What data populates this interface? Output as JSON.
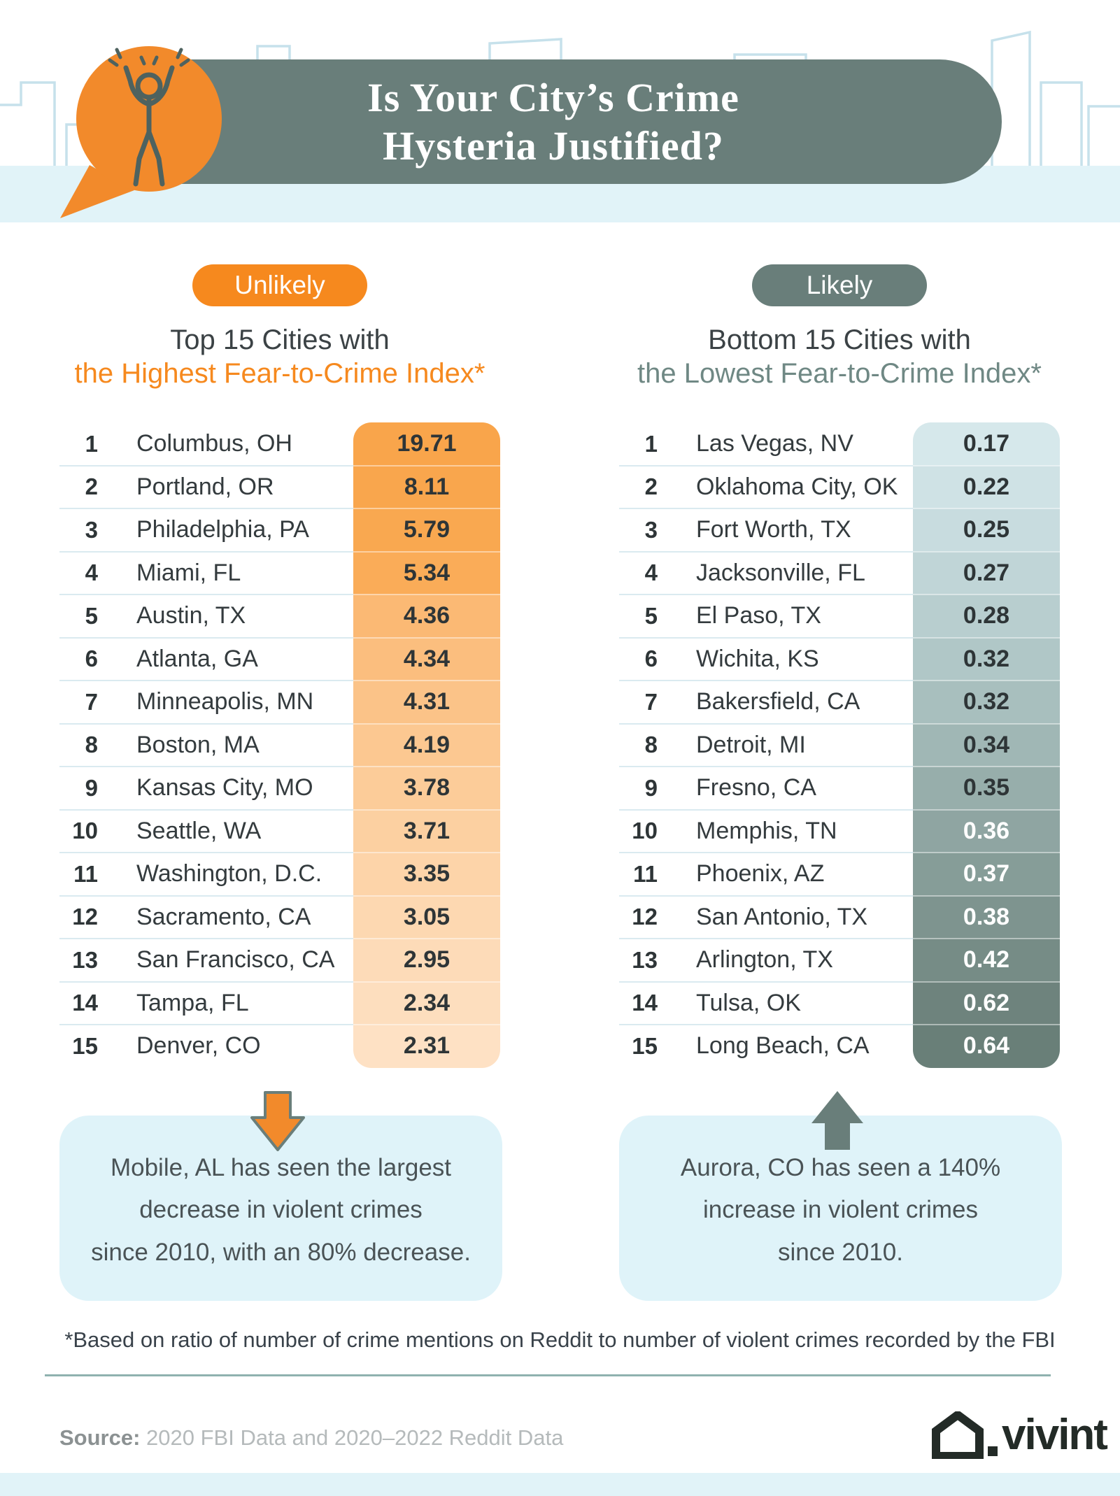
{
  "header": {
    "title_line1": "Is Your City’s Crime",
    "title_line2": "Hysteria Justified?"
  },
  "left": {
    "badge": "Unlikely",
    "heading_line1": "Top 15 Cities with",
    "heading_line2": "the Highest Fear-to-Crime Index*",
    "accent": "#F6891E",
    "callout_lines": [
      "Mobile, AL has seen the largest",
      "decrease in violent crimes",
      "since 2010, with an 80% decrease."
    ]
  },
  "right": {
    "badge": "Likely",
    "heading_line1": "Bottom 15 Cities with",
    "heading_line2": "the Lowest Fear-to-Crime Index*",
    "accent": "#6F8884",
    "callout_lines": [
      "Aurora, CO has seen a 140%",
      "increase in violent crimes",
      "since 2010."
    ]
  },
  "chart_data": [
    {
      "type": "table",
      "title": "Top 15 Cities with the Highest Fear-to-Crime Index*",
      "legend": "Unlikely",
      "columns": [
        "rank",
        "city",
        "fear_to_crime_index"
      ],
      "rows": [
        {
          "rank": "1",
          "city": "Columbus, OH",
          "value": "19.71",
          "bg": "#F9A54B",
          "fg": "#2E3537"
        },
        {
          "rank": "2",
          "city": "Portland, OR",
          "value": "8.11",
          "bg": "#F9A64D",
          "fg": "#2E3537"
        },
        {
          "rank": "3",
          "city": "Philadelphia, PA",
          "value": "5.79",
          "bg": "#F9A850",
          "fg": "#2E3537"
        },
        {
          "rank": "4",
          "city": "Miami, FL",
          "value": "5.34",
          "bg": "#FAAC58",
          "fg": "#2E3537"
        },
        {
          "rank": "5",
          "city": "Austin, TX",
          "value": "4.36",
          "bg": "#FBB974",
          "fg": "#2E3537"
        },
        {
          "rank": "6",
          "city": "Atlanta, GA",
          "value": "4.34",
          "bg": "#FBBE7E",
          "fg": "#2E3537"
        },
        {
          "rank": "7",
          "city": "Minneapolis, MN",
          "value": "4.31",
          "bg": "#FBC388",
          "fg": "#2E3537"
        },
        {
          "rank": "8",
          "city": "Boston, MA",
          "value": "4.19",
          "bg": "#FCC891",
          "fg": "#2E3537"
        },
        {
          "rank": "9",
          "city": "Kansas City, MO",
          "value": "3.78",
          "bg": "#FCCC99",
          "fg": "#2E3537"
        },
        {
          "rank": "10",
          "city": "Seattle, WA",
          "value": "3.71",
          "bg": "#FCD0A1",
          "fg": "#2E3537"
        },
        {
          "rank": "11",
          "city": "Washington, D.C.",
          "value": "3.35",
          "bg": "#FDD4A9",
          "fg": "#2E3537"
        },
        {
          "rank": "12",
          "city": "Sacramento, CA",
          "value": "3.05",
          "bg": "#FDD8B1",
          "fg": "#2E3537"
        },
        {
          "rank": "13",
          "city": "San Francisco, CA",
          "value": "2.95",
          "bg": "#FDDBB8",
          "fg": "#2E3537"
        },
        {
          "rank": "14",
          "city": "Tampa, FL",
          "value": "2.34",
          "bg": "#FDDEBE",
          "fg": "#2E3537"
        },
        {
          "rank": "15",
          "city": "Denver, CO",
          "value": "2.31",
          "bg": "#FEE1C4",
          "fg": "#2E3537"
        }
      ]
    },
    {
      "type": "table",
      "title": "Bottom 15 Cities with the Lowest Fear-to-Crime Index*",
      "legend": "Likely",
      "columns": [
        "rank",
        "city",
        "fear_to_crime_index"
      ],
      "rows": [
        {
          "rank": "1",
          "city": "Las Vegas, NV",
          "value": "0.17",
          "bg": "#D6E8EB",
          "fg": "#2E3537"
        },
        {
          "rank": "2",
          "city": "Oklahoma City, OK",
          "value": "0.22",
          "bg": "#CFE2E5",
          "fg": "#2E3537"
        },
        {
          "rank": "3",
          "city": "Fort Worth, TX",
          "value": "0.25",
          "bg": "#C8DCDF",
          "fg": "#2E3537"
        },
        {
          "rank": "4",
          "city": "Jacksonville, FL",
          "value": "0.27",
          "bg": "#C0D5D7",
          "fg": "#2E3537"
        },
        {
          "rank": "5",
          "city": "El Paso, TX",
          "value": "0.28",
          "bg": "#B8CECF",
          "fg": "#2E3537"
        },
        {
          "rank": "6",
          "city": "Wichita, KS",
          "value": "0.32",
          "bg": "#B0C7C7",
          "fg": "#2E3537"
        },
        {
          "rank": "7",
          "city": "Bakersfield, CA",
          "value": "0.32",
          "bg": "#A8BFBE",
          "fg": "#2E3537"
        },
        {
          "rank": "8",
          "city": "Detroit, MI",
          "value": "0.34",
          "bg": "#A0B7B5",
          "fg": "#2E3537"
        },
        {
          "rank": "9",
          "city": "Fresno, CA",
          "value": "0.35",
          "bg": "#97AEAB",
          "fg": "#2E3537"
        },
        {
          "rank": "10",
          "city": "Memphis, TN",
          "value": "0.36",
          "bg": "#8FA5A2",
          "fg": "#FFFFFF"
        },
        {
          "rank": "11",
          "city": "Phoenix, AZ",
          "value": "0.37",
          "bg": "#869D98",
          "fg": "#FFFFFF"
        },
        {
          "rank": "12",
          "city": "San Antonio, TX",
          "value": "0.38",
          "bg": "#7E948F",
          "fg": "#FFFFFF"
        },
        {
          "rank": "13",
          "city": "Arlington, TX",
          "value": "0.42",
          "bg": "#768C86",
          "fg": "#FFFFFF"
        },
        {
          "rank": "14",
          "city": "Tulsa, OK",
          "value": "0.62",
          "bg": "#6E837D",
          "fg": "#FFFFFF"
        },
        {
          "rank": "15",
          "city": "Long Beach, CA",
          "value": "0.64",
          "bg": "#697F78",
          "fg": "#FFFFFF"
        }
      ]
    }
  ],
  "footnote": "*Based on ratio of number of crime mentions on Reddit to number of violent crimes recorded by the FBI",
  "source_label": "Source:",
  "source_text": "2020 FBI Data and 2020–2022 Reddit Data",
  "logo_text": "vivint",
  "colors": {
    "orange": "#F28A2B",
    "slate": "#697E7A",
    "band_blue": "#E1F3F8",
    "callout_blue": "#DFF3F9"
  }
}
